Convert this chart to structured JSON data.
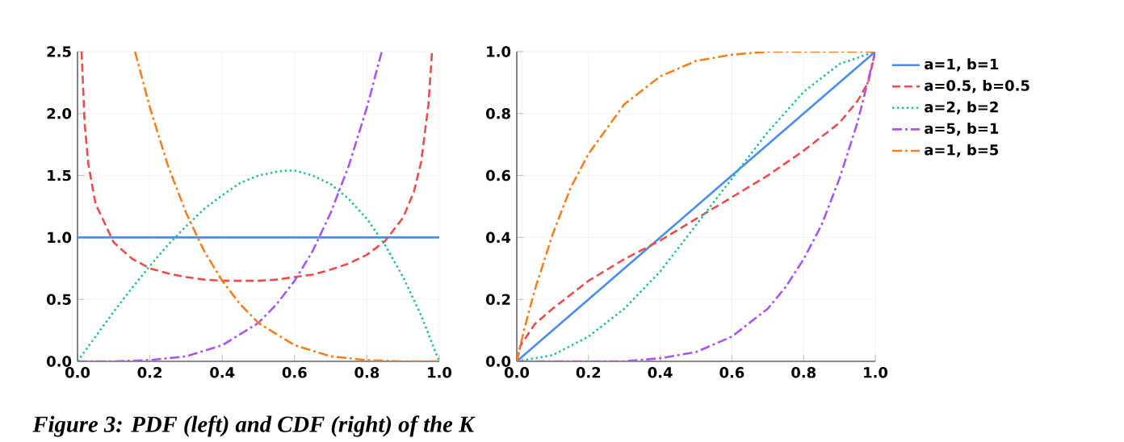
{
  "chart_data": [
    {
      "type": "line",
      "annotations": [
        "Figure 3: PDF (left) and CDF (right) of the K"
      ],
      "xlim": [
        0,
        1
      ],
      "ylim": [
        0,
        2.5
      ],
      "xticks": [
        {
          "value": 0,
          "label": "0.0"
        },
        {
          "value": 0.2,
          "label": "0.2"
        },
        {
          "value": 0.4,
          "label": "0.4"
        },
        {
          "value": 0.6,
          "label": "0.6"
        },
        {
          "value": 0.8,
          "label": "0.8"
        },
        {
          "value": 1,
          "label": "1.0"
        }
      ],
      "yticks": [
        {
          "value": 0,
          "label": "0.0"
        },
        {
          "value": 0.5,
          "label": "0.5"
        },
        {
          "value": 1,
          "label": "1.0"
        },
        {
          "value": 1.5,
          "label": "1.5"
        },
        {
          "value": 2,
          "label": "2.0"
        },
        {
          "value": 2.5,
          "label": "2.5"
        }
      ],
      "grid": true,
      "series": [
        {
          "color": "#4a8cf5",
          "line_style": "solid",
          "x": [
            0,
            1
          ],
          "values": [
            1,
            1
          ]
        },
        {
          "color": "#ee4c4c",
          "line_style": "dashed",
          "x": [
            0.0112,
            0.02,
            0.03,
            0.05,
            0.1,
            0.15,
            0.2,
            0.25,
            0.3,
            0.35,
            0.4,
            0.45,
            0.5,
            0.55,
            0.6,
            0.65,
            0.7,
            0.75,
            0.8,
            0.85,
            0.9,
            0.93,
            0.95,
            0.97,
            0.98
          ],
          "values": [
            2.5,
            1.91,
            1.59,
            1.27,
            0.96,
            0.83,
            0.75,
            0.71,
            0.68,
            0.66,
            0.65,
            0.65,
            0.65,
            0.66,
            0.68,
            0.7,
            0.74,
            0.79,
            0.86,
            0.97,
            1.16,
            1.37,
            1.61,
            2.07,
            2.5
          ]
        },
        {
          "color": "#1fbf8f",
          "line_style": "dotted",
          "x": [
            0,
            0.05,
            0.1,
            0.15,
            0.2,
            0.25,
            0.3,
            0.35,
            0.4,
            0.45,
            0.5,
            0.55,
            0.577,
            0.6,
            0.65,
            0.7,
            0.75,
            0.8,
            0.85,
            0.9,
            0.95,
            1
          ],
          "values": [
            0,
            0.2,
            0.4,
            0.59,
            0.77,
            0.94,
            1.09,
            1.23,
            1.34,
            1.44,
            1.5,
            1.53,
            1.54,
            1.54,
            1.5,
            1.43,
            1.31,
            1.15,
            0.94,
            0.68,
            0.37,
            0
          ]
        },
        {
          "color": "#a855f7",
          "line_style": "dashdot",
          "x": [
            0,
            0.1,
            0.2,
            0.3,
            0.4,
            0.5,
            0.55,
            0.6,
            0.65,
            0.7,
            0.75,
            0.8,
            0.841
          ],
          "values": [
            0,
            0.0,
            0.01,
            0.04,
            0.13,
            0.31,
            0.46,
            0.65,
            0.89,
            1.2,
            1.58,
            2.05,
            2.5
          ]
        },
        {
          "color": "#f77f1e",
          "line_style": "dashdot",
          "x": [
            0.159,
            0.2,
            0.25,
            0.3,
            0.35,
            0.4,
            0.45,
            0.5,
            0.6,
            0.7,
            0.8,
            0.9,
            1
          ],
          "values": [
            2.5,
            2.05,
            1.58,
            1.2,
            0.89,
            0.65,
            0.46,
            0.31,
            0.13,
            0.04,
            0.01,
            0.0,
            0
          ]
        }
      ]
    },
    {
      "type": "line",
      "xlim": [
        0,
        1
      ],
      "ylim": [
        0,
        1
      ],
      "xticks": [
        {
          "value": 0,
          "label": "0.0"
        },
        {
          "value": 0.2,
          "label": "0.2"
        },
        {
          "value": 0.4,
          "label": "0.4"
        },
        {
          "value": 0.6,
          "label": "0.6"
        },
        {
          "value": 0.8,
          "label": "0.8"
        },
        {
          "value": 1,
          "label": "1.0"
        }
      ],
      "yticks": [
        {
          "value": 0,
          "label": "0.0"
        },
        {
          "value": 0.2,
          "label": "0.2"
        },
        {
          "value": 0.4,
          "label": "0.4"
        },
        {
          "value": 0.6,
          "label": "0.6"
        },
        {
          "value": 0.8,
          "label": "0.8"
        },
        {
          "value": 1,
          "label": "1.0"
        }
      ],
      "grid": true,
      "legend": "right",
      "series": [
        {
          "name": "a=1, b=1",
          "color": "#4a8cf5",
          "line_style": "solid",
          "x": [
            0,
            1
          ],
          "values": [
            0,
            1
          ]
        },
        {
          "name": "a=0.5, b=0.5",
          "color": "#ee4c4c",
          "line_style": "dashed",
          "x": [
            0,
            0.01,
            0.05,
            0.1,
            0.2,
            0.3,
            0.4,
            0.5,
            0.6,
            0.7,
            0.8,
            0.9,
            0.95,
            0.98,
            1
          ],
          "values": [
            0,
            0.05,
            0.12,
            0.17,
            0.26,
            0.33,
            0.39,
            0.46,
            0.53,
            0.6,
            0.68,
            0.77,
            0.84,
            0.9,
            1
          ]
        },
        {
          "name": "a=2, b=2",
          "color": "#1fbf8f",
          "line_style": "dotted",
          "x": [
            0,
            0.1,
            0.2,
            0.3,
            0.4,
            0.5,
            0.6,
            0.7,
            0.8,
            0.9,
            1
          ],
          "values": [
            0,
            0.02,
            0.08,
            0.17,
            0.29,
            0.44,
            0.59,
            0.74,
            0.87,
            0.96,
            1
          ]
        },
        {
          "name": "a=5, b=1",
          "color": "#a855f7",
          "line_style": "dashdot",
          "x": [
            0,
            0.2,
            0.3,
            0.4,
            0.5,
            0.6,
            0.7,
            0.75,
            0.8,
            0.85,
            0.9,
            0.95,
            1
          ],
          "values": [
            0,
            0.0,
            0.0,
            0.01,
            0.03,
            0.08,
            0.17,
            0.24,
            0.33,
            0.44,
            0.59,
            0.77,
            1
          ]
        },
        {
          "name": "a=1, b=5",
          "color": "#f77f1e",
          "line_style": "dashdot",
          "x": [
            0,
            0.02,
            0.05,
            0.1,
            0.15,
            0.2,
            0.3,
            0.4,
            0.5,
            0.6,
            0.7,
            0.8,
            1
          ],
          "values": [
            0,
            0.1,
            0.23,
            0.41,
            0.56,
            0.67,
            0.83,
            0.92,
            0.97,
            0.99,
            1.0,
            1.0,
            1
          ]
        }
      ]
    }
  ]
}
